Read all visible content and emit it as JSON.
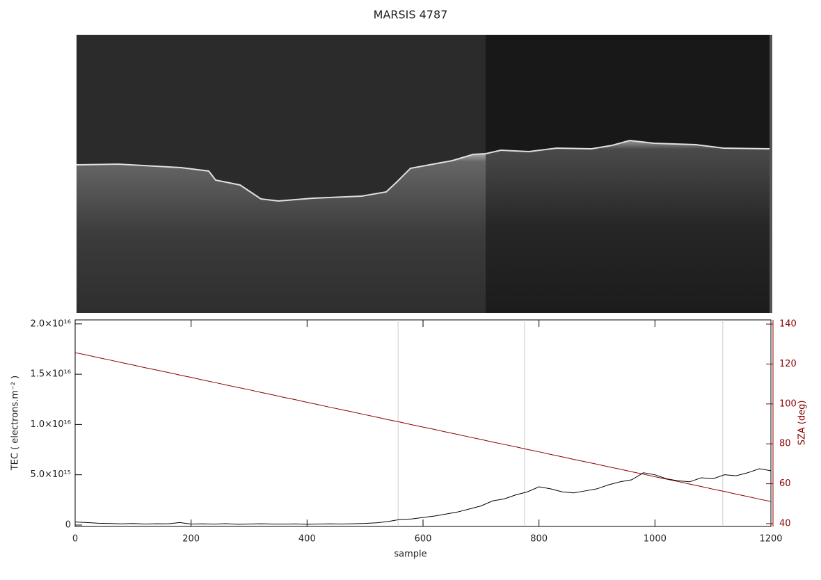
{
  "chart_data": {
    "type": "line",
    "title": "MARSIS 4787",
    "x_label": "sample",
    "y_label": "TEC ( electrons.m⁻² )",
    "y2_label": "SZA (deg)",
    "xlim": [
      0,
      1200
    ],
    "xticks": [
      0,
      200,
      400,
      600,
      800,
      1000,
      1200
    ],
    "ylim": [
      -140000000000000.0,
      2.04e+16
    ],
    "yticks": [
      {
        "value": 0,
        "label": "0"
      },
      {
        "value": 5000000000000000.0,
        "label": "5.0×10¹⁵"
      },
      {
        "value": 1e+16,
        "label": "1.0×10¹⁶"
      },
      {
        "value": 1.5e+16,
        "label": "1.5×10¹⁶"
      },
      {
        "value": 2e+16,
        "label": "2.0×10¹⁶"
      }
    ],
    "y2lim": [
      38.6,
      142.1
    ],
    "y2ticks": [
      40,
      60,
      80,
      100,
      120,
      140
    ],
    "y2_color": "#8b0000",
    "markers": [
      557,
      775,
      1117
    ],
    "x": [
      0,
      20,
      40,
      60,
      80,
      100,
      120,
      140,
      160,
      180,
      200,
      220,
      240,
      260,
      280,
      300,
      320,
      340,
      360,
      380,
      400,
      420,
      440,
      460,
      480,
      500,
      520,
      540,
      560,
      580,
      600,
      620,
      640,
      660,
      680,
      700,
      720,
      740,
      760,
      780,
      800,
      820,
      840,
      860,
      880,
      900,
      920,
      940,
      960,
      980,
      1000,
      1020,
      1040,
      1060,
      1080,
      1100,
      1120,
      1140,
      1160,
      1180,
      1200
    ],
    "series": [
      {
        "name": "TEC",
        "color": "#000000",
        "values": [
          300000000000000.0,
          250000000000000.0,
          180000000000000.0,
          150000000000000.0,
          120000000000000.0,
          150000000000000.0,
          100000000000000.0,
          130000000000000.0,
          120000000000000.0,
          250000000000000.0,
          100000000000000.0,
          120000000000000.0,
          90000000000000.0,
          140000000000000.0,
          80000000000000.0,
          100000000000000.0,
          130000000000000.0,
          100000000000000.0,
          90000000000000.0,
          110000000000000.0,
          80000000000000.0,
          100000000000000.0,
          120000000000000.0,
          100000000000000.0,
          130000000000000.0,
          160000000000000.0,
          220000000000000.0,
          350000000000000.0,
          550000000000000.0,
          600000000000000.0,
          750000000000000.0,
          900000000000000.0,
          1100000000000000.0,
          1300000000000000.0,
          1600000000000000.0,
          1900000000000000.0,
          2400000000000000.0,
          2600000000000000.0,
          3000000000000000.0,
          3300000000000000.0,
          3800000000000000.0,
          3600000000000000.0,
          3300000000000000.0,
          3200000000000000.0,
          3400000000000000.0,
          3600000000000000.0,
          4000000000000000.0,
          4300000000000000.0,
          4500000000000000.0,
          5200000000000000.0,
          5000000000000000.0,
          4600000000000000.0,
          4400000000000000.0,
          4300000000000000.0,
          4700000000000000.0,
          4600000000000000.0,
          5000000000000000.0,
          4900000000000000.0,
          5200000000000000.0,
          5600000000000000.0,
          5400000000000000.0
        ]
      },
      {
        "name": "SZA",
        "color": "#8b0000",
        "axis": "y2",
        "values": [
          125.7,
          124.5,
          123.2,
          122.0,
          120.7,
          119.5,
          118.2,
          117.0,
          115.8,
          114.5,
          113.3,
          112.0,
          110.8,
          109.5,
          108.3,
          107.1,
          105.8,
          104.6,
          103.3,
          102.1,
          100.8,
          99.6,
          98.3,
          97.1,
          95.9,
          94.6,
          93.4,
          92.1,
          90.9,
          89.6,
          88.4,
          87.2,
          85.9,
          84.7,
          83.4,
          82.2,
          80.9,
          79.7,
          78.5,
          77.2,
          76.0,
          74.7,
          73.5,
          72.2,
          71.0,
          69.8,
          68.5,
          67.3,
          66.0,
          64.8,
          63.5,
          62.3,
          61.1,
          59.8,
          58.6,
          57.3,
          56.1,
          54.8,
          53.6,
          52.3,
          51.1
        ]
      }
    ]
  }
}
